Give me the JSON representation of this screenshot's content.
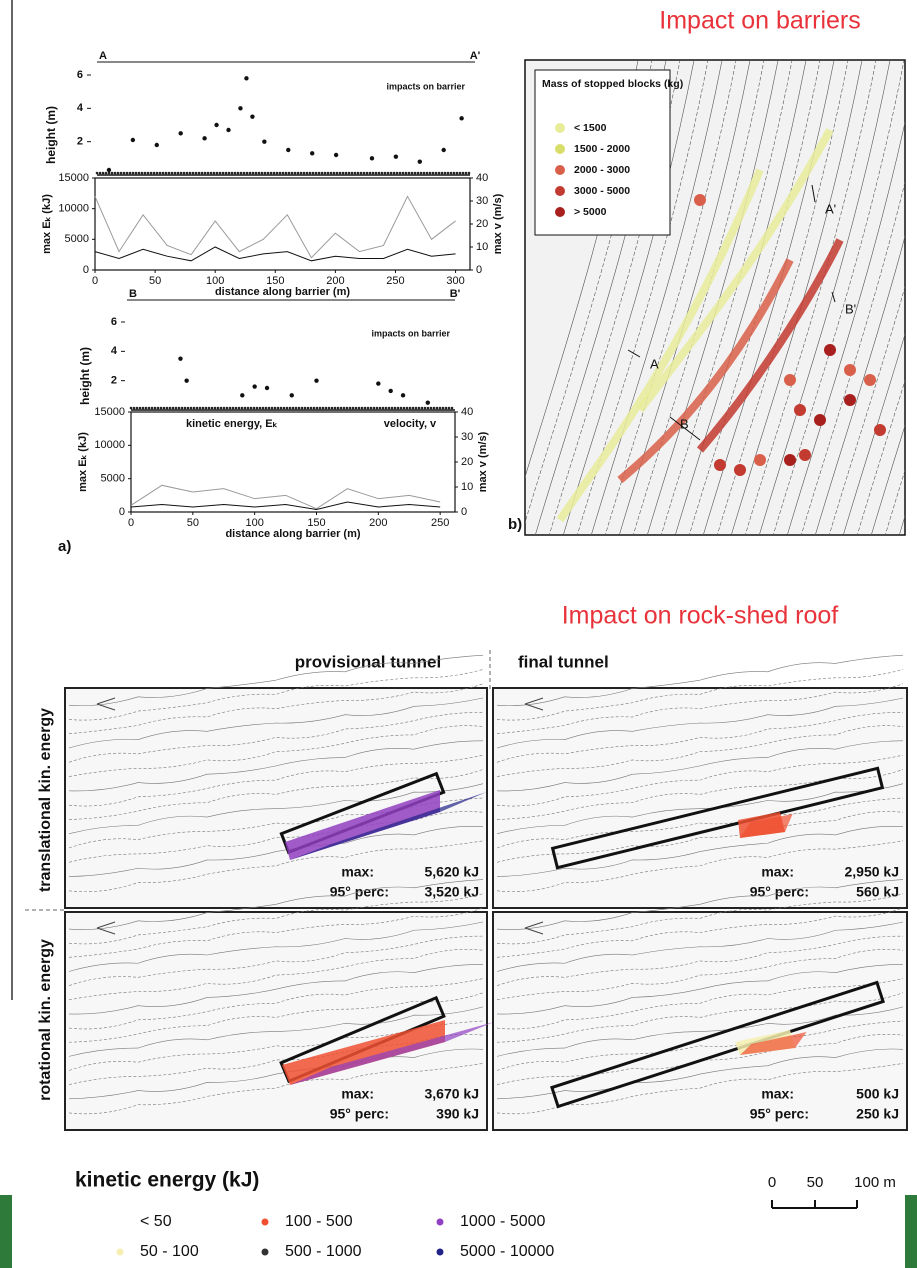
{
  "panel_a": {
    "label": "a)",
    "section_A": {
      "start": "A",
      "end": "A'"
    },
    "section_B": {
      "start": "B",
      "end": "B'"
    },
    "plots": [
      {
        "type": "scatter",
        "annotation": "impacts on barrier",
        "ylabel": "height (m)",
        "xlim": [
          0,
          312
        ],
        "ylim": [
          0,
          6
        ],
        "yticks": [
          2,
          4,
          6
        ],
        "x": [
          10,
          30,
          50,
          70,
          90,
          100,
          110,
          120,
          125,
          130,
          140,
          160,
          180,
          200,
          230,
          250,
          270,
          290,
          305
        ],
        "y": [
          0.3,
          2.1,
          1.8,
          2.5,
          2.2,
          3,
          2.7,
          4,
          5.8,
          3.5,
          2,
          1.5,
          1.3,
          1.2,
          1,
          1.1,
          0.8,
          1.5,
          3.4
        ]
      },
      {
        "type": "line",
        "ylabel": "max Eₖ (kJ)",
        "y2label": "max v (m/s)",
        "xlabel": "distance along barrier (m)",
        "xlim": [
          0,
          312
        ],
        "xticks": [
          0,
          50,
          100,
          150,
          200,
          250,
          300
        ],
        "ylim": [
          0,
          15000
        ],
        "yticks": [
          0,
          5000,
          10000,
          15000
        ],
        "y2lim": [
          0,
          40
        ],
        "y2ticks": [
          0,
          10,
          20,
          30,
          40
        ],
        "x": [
          0,
          20,
          40,
          60,
          80,
          100,
          120,
          140,
          160,
          180,
          200,
          220,
          240,
          260,
          280,
          300
        ],
        "series": [
          {
            "color": "#9a9a9a",
            "values": [
              12000,
              3000,
              9000,
              4000,
              2500,
              8000,
              3000,
              5000,
              9000,
              2000,
              6000,
              3000,
              4000,
              12000,
              5000,
              8000
            ]
          },
          {
            "color": "#111111",
            "axis": "y2",
            "values": [
              8,
              5,
              9,
              6,
              4,
              10,
              5,
              7,
              8,
              4,
              6,
              5,
              5,
              9,
              6,
              7
            ]
          }
        ]
      },
      {
        "type": "scatter",
        "annotation": "impacts on barrier",
        "ylabel": "height (m)",
        "xlim": [
          0,
          262
        ],
        "ylim": [
          0,
          6
        ],
        "yticks": [
          2,
          4,
          6
        ],
        "x": [
          40,
          45,
          90,
          100,
          110,
          130,
          150,
          200,
          210,
          220,
          240
        ],
        "y": [
          3.5,
          2,
          1,
          1.6,
          1.5,
          1,
          2,
          1.8,
          1.3,
          1,
          0.5
        ]
      },
      {
        "type": "line",
        "ylabel": "max Eₖ (kJ)",
        "y2label": "max v (m/s)",
        "xlabel": "distance along barrier (m)",
        "xlim": [
          0,
          262
        ],
        "xticks": [
          0,
          50,
          100,
          150,
          200,
          250
        ],
        "ylim": [
          0,
          15000
        ],
        "yticks": [
          0,
          5000,
          10000,
          15000
        ],
        "y2lim": [
          0,
          40
        ],
        "y2ticks": [
          0,
          10,
          20,
          30,
          40
        ],
        "x": [
          0,
          25,
          50,
          75,
          100,
          125,
          150,
          175,
          200,
          225,
          250
        ],
        "series": [
          {
            "name": "kinetic energy, Eₖ",
            "color": "#9a9a9a",
            "values": [
              1000,
              4000,
              3000,
              3500,
              2000,
              2500,
              500,
              3500,
              2000,
              2500,
              1500
            ]
          },
          {
            "name": "velocity, v",
            "color": "#111111",
            "axis": "y2",
            "values": [
              2,
              3,
              2,
              3,
              2,
              3,
              1,
              4,
              2,
              3,
              2
            ]
          }
        ]
      }
    ]
  },
  "panel_b": {
    "label": "b)",
    "title": "Impact on barriers",
    "legend": {
      "title": "Mass of stopped blocks (kg)",
      "items": [
        {
          "label": "< 1500",
          "color": "#e8ec9a"
        },
        {
          "label": "1500 - 2000",
          "color": "#d9dd6a"
        },
        {
          "label": "2000 - 3000",
          "color": "#d8604a"
        },
        {
          "label": "3000 - 5000",
          "color": "#c23a30"
        },
        {
          "label": "> 5000",
          "color": "#a8201e"
        }
      ]
    },
    "map_labels": [
      "A",
      "A'",
      "B",
      "B'"
    ]
  },
  "roof": {
    "title": "Impact on rock-shed roof",
    "columns": [
      "provisional tunnel",
      "final tunnel"
    ],
    "rows": [
      "translational kin. energy",
      "rotational kin. energy"
    ],
    "panels": [
      {
        "max_label": "max:",
        "max": "5,620 kJ",
        "perc_label": "95° perc:",
        "perc": "3,520 kJ"
      },
      {
        "max_label": "max:",
        "max": "2,950 kJ",
        "perc_label": "95° perc:",
        "perc": "560 kJ"
      },
      {
        "max_label": "max:",
        "max": "3,670 kJ",
        "perc_label": "95° perc:",
        "perc": "390 kJ"
      },
      {
        "max_label": "max:",
        "max": "500 kJ",
        "perc_label": "95° perc:",
        "perc": "250 kJ"
      }
    ]
  },
  "legend": {
    "title": "kinetic energy (kJ)",
    "items": [
      {
        "label": "< 50",
        "color": "#ffffff"
      },
      {
        "label": "50 - 100",
        "color": "#f6f0b0"
      },
      {
        "label": "100 - 500",
        "color": "#f05030"
      },
      {
        "label": "500 - 1000",
        "color": "#333333"
      },
      {
        "label": "1000 - 5000",
        "color": "#9040c0"
      },
      {
        "label": "5000 - 10000",
        "color": "#222288"
      }
    ],
    "scale": [
      "0",
      "50",
      "100 m"
    ]
  }
}
